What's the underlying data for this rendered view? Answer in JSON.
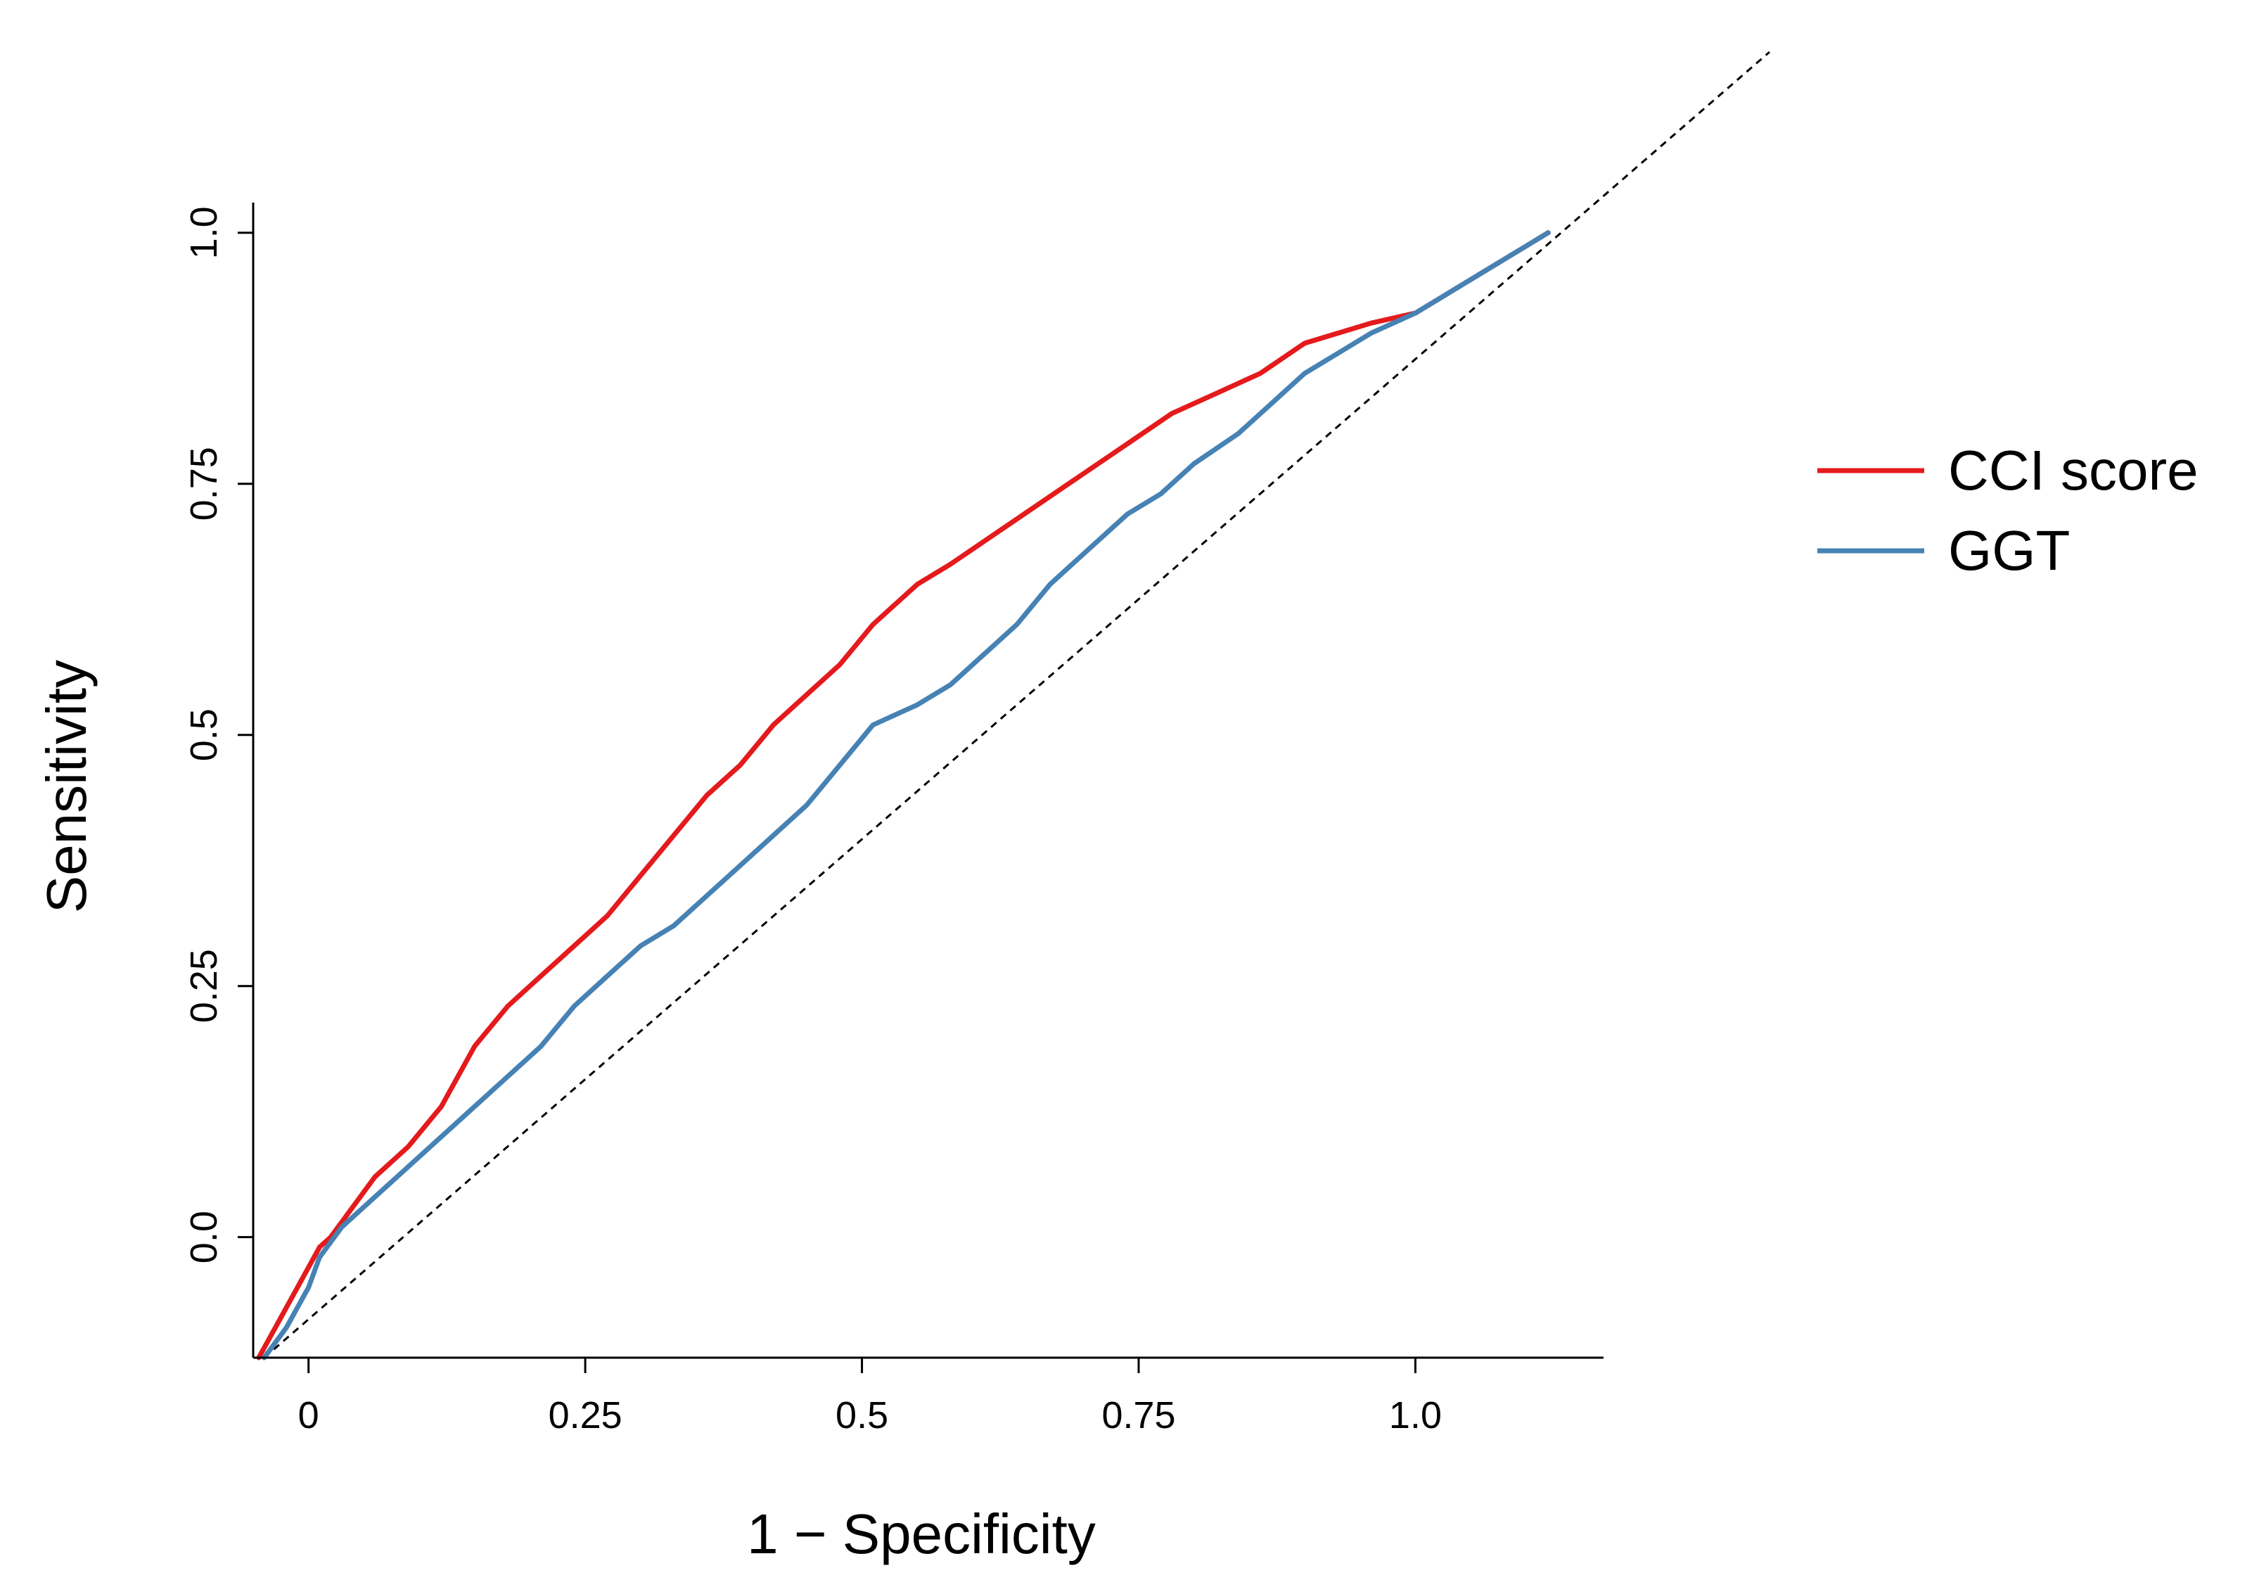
{
  "chart_data": {
    "type": "line",
    "title": "",
    "xlabel": "1 − Specificity",
    "ylabel": "Sensitivity",
    "xlim": [
      -0.05,
      1.17
    ],
    "ylim": [
      -0.12,
      1.03
    ],
    "xticks": [
      0,
      0.25,
      0.5,
      0.75,
      1.0
    ],
    "xtick_labels": [
      "0",
      "0.25",
      "0.5",
      "0.75",
      "1.0"
    ],
    "yticks": [
      0.0,
      0.25,
      0.5,
      0.75,
      1.0
    ],
    "ytick_labels": [
      "0.0",
      "0.25",
      "0.5",
      "0.75",
      "1.0"
    ],
    "grid": false,
    "legend_position": "right",
    "reference_line": {
      "x": [
        -0.04,
        1.32
      ],
      "y": [
        -0.12,
        1.18
      ],
      "style": "dashed",
      "color": "#000000"
    },
    "series": [
      {
        "name": "CCI score",
        "color": "#e41a1c",
        "x": [
          -0.045,
          -0.03,
          -0.01,
          0.01,
          0.02,
          0.04,
          0.06,
          0.09,
          0.12,
          0.15,
          0.18,
          0.21,
          0.24,
          0.27,
          0.3,
          0.33,
          0.36,
          0.39,
          0.42,
          0.45,
          0.48,
          0.51,
          0.55,
          0.58,
          0.62,
          0.66,
          0.7,
          0.74,
          0.78,
          0.82,
          0.86,
          0.9,
          0.93,
          0.96,
          1.0,
          1.03,
          1.06,
          1.09,
          1.12
        ],
        "y": [
          -0.12,
          -0.09,
          -0.05,
          -0.01,
          0.0,
          0.03,
          0.06,
          0.09,
          0.13,
          0.19,
          0.23,
          0.26,
          0.29,
          0.32,
          0.36,
          0.4,
          0.44,
          0.47,
          0.51,
          0.54,
          0.57,
          0.61,
          0.65,
          0.67,
          0.7,
          0.73,
          0.76,
          0.79,
          0.82,
          0.84,
          0.86,
          0.89,
          0.9,
          0.91,
          0.92,
          0.94,
          0.96,
          0.98,
          1.0
        ]
      },
      {
        "name": "GGT",
        "color": "#4682b4",
        "x": [
          -0.04,
          -0.02,
          -0.01,
          0.0,
          0.01,
          0.03,
          0.06,
          0.09,
          0.12,
          0.15,
          0.18,
          0.21,
          0.24,
          0.27,
          0.3,
          0.33,
          0.36,
          0.39,
          0.42,
          0.45,
          0.48,
          0.51,
          0.55,
          0.58,
          0.61,
          0.64,
          0.67,
          0.7,
          0.74,
          0.77,
          0.8,
          0.84,
          0.87,
          0.9,
          0.93,
          0.96,
          1.0,
          1.03,
          1.06,
          1.09,
          1.12
        ],
        "y": [
          -0.12,
          -0.09,
          -0.07,
          -0.05,
          -0.02,
          0.01,
          0.04,
          0.07,
          0.1,
          0.13,
          0.16,
          0.19,
          0.23,
          0.26,
          0.29,
          0.31,
          0.34,
          0.37,
          0.4,
          0.43,
          0.47,
          0.51,
          0.53,
          0.55,
          0.58,
          0.61,
          0.65,
          0.68,
          0.72,
          0.74,
          0.77,
          0.8,
          0.83,
          0.86,
          0.88,
          0.9,
          0.92,
          0.94,
          0.96,
          0.98,
          1.0
        ]
      }
    ]
  }
}
